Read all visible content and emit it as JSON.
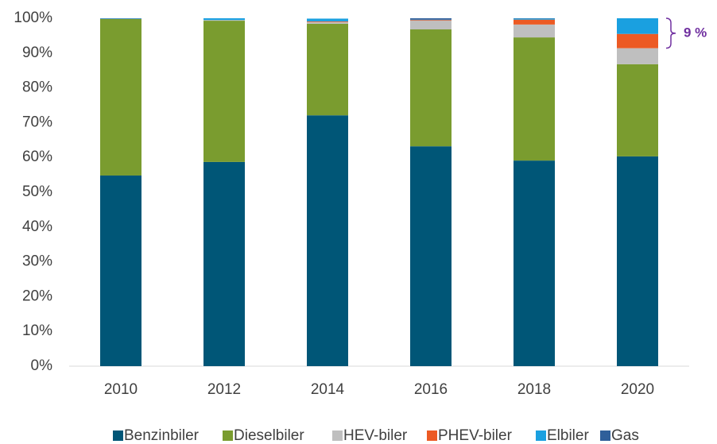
{
  "chart_data": {
    "type": "stacked_bar",
    "categories": [
      "2010",
      "2012",
      "2014",
      "2016",
      "2018",
      "2020"
    ],
    "series": [
      {
        "name": "Benzinbiler",
        "color": "#005677",
        "values": [
          54.8,
          58.7,
          72.1,
          63.2,
          59.1,
          60.3
        ]
      },
      {
        "name": "Dieselbiler",
        "color": "#7a9c2f",
        "values": [
          45.0,
          40.6,
          26.3,
          33.6,
          35.4,
          26.5
        ]
      },
      {
        "name": "HEV-biler",
        "color": "#bfbfbf",
        "values": [
          0,
          0.2,
          0.5,
          2.5,
          3.7,
          4.6
        ]
      },
      {
        "name": "PHEV-biler",
        "color": "#ec5a24",
        "values": [
          0,
          0,
          0.2,
          0.2,
          1.4,
          4.1
        ]
      },
      {
        "name": "Elbiler",
        "color": "#1aa0e0",
        "values": [
          0.1,
          0.5,
          0.8,
          0.1,
          0.3,
          4.5
        ]
      },
      {
        "name": "Gas",
        "color": "#2f5f9a",
        "values": [
          0.1,
          0,
          0,
          0.4,
          0.1,
          0
        ]
      }
    ],
    "ylim": [
      0,
      100
    ],
    "yticks": [
      {
        "value": 0,
        "label": "0%"
      },
      {
        "value": 10,
        "label": "10%"
      },
      {
        "value": 20,
        "label": "20%"
      },
      {
        "value": 30,
        "label": "30%"
      },
      {
        "value": 40,
        "label": "40%"
      },
      {
        "value": 50,
        "label": "50%"
      },
      {
        "value": 60,
        "label": "60%"
      },
      {
        "value": 70,
        "label": "70%"
      },
      {
        "value": 80,
        "label": "80%"
      },
      {
        "value": 90,
        "label": "90%"
      },
      {
        "value": 100,
        "label": "100%"
      }
    ],
    "annotation": "9 %",
    "annotation_color": "#7030a0",
    "legend": "bottom"
  }
}
